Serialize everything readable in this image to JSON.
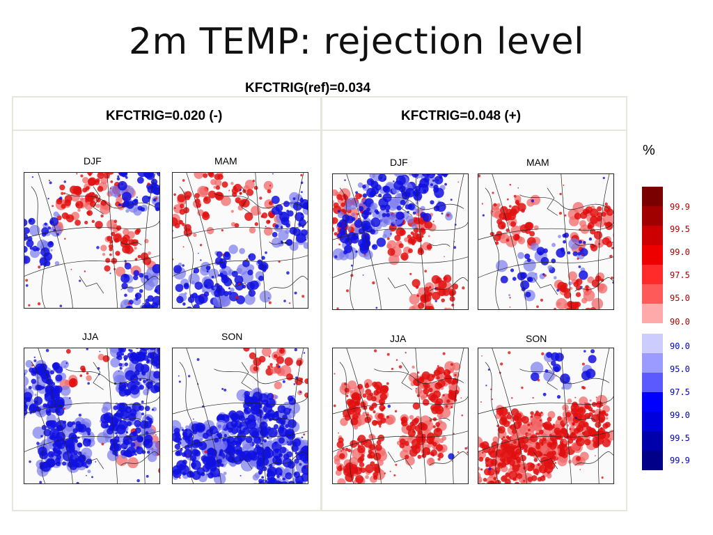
{
  "title": "2m TEMP: rejection level",
  "reference": "KFCTRIG(ref)=0.034",
  "columns": [
    {
      "header": "KFCTRIG=0.020 (-)",
      "seasons": [
        "DJF",
        "MAM",
        "JJA",
        "SON"
      ]
    },
    {
      "header": "KFCTRIG=0.048 (+)",
      "seasons": [
        "DJF",
        "MAM",
        "JJA",
        "SON"
      ]
    }
  ],
  "colorbar": {
    "unit": "%",
    "red_labels": [
      "99.9",
      "99.5",
      "99.0",
      "97.5",
      "95.0",
      "90.0"
    ],
    "blue_labels": [
      "90.0",
      "95.0",
      "97.5",
      "99.0",
      "99.5",
      "99.9"
    ],
    "red_colors": [
      "#7a0000",
      "#a00000",
      "#cc0000",
      "#ee0000",
      "#ff2a2a",
      "#ff5a5a",
      "#ffaaaa"
    ],
    "blue_colors": [
      "#ccccff",
      "#9a9aff",
      "#5a5aff",
      "#0000ff",
      "#0000dd",
      "#0000aa",
      "#000088"
    ]
  },
  "colors": {
    "red": "#e01010",
    "light_red": "#f26a6a",
    "blue": "#1010e0",
    "light_blue": "#7a7aee"
  }
}
